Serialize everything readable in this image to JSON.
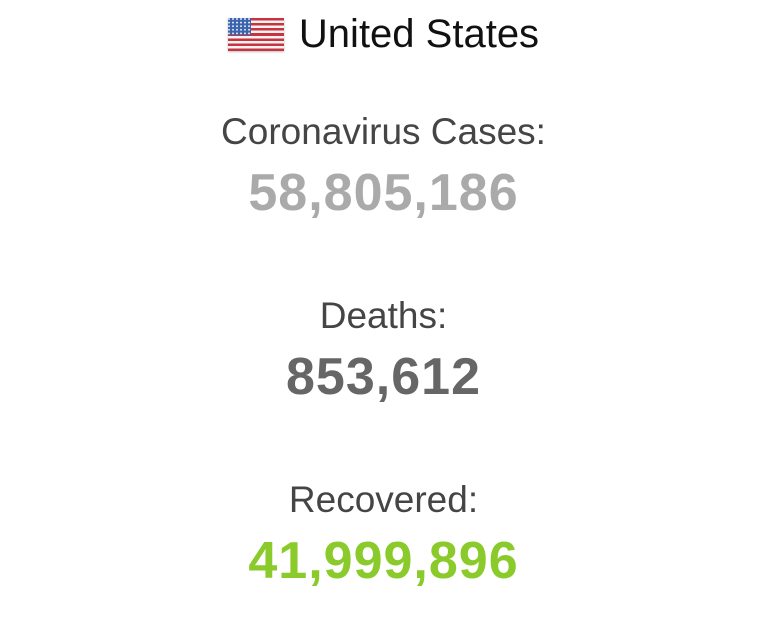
{
  "header": {
    "country": "United States",
    "flag_icon": "us-flag",
    "flag_colors": {
      "red": "#c7333e",
      "white": "#f3f3f3",
      "blue": "#3a64ad",
      "stars": "#ffffff"
    },
    "title_color": "#111111"
  },
  "label_color": "#454545",
  "counters": [
    {
      "id": "cases",
      "label": "Coronavirus Cases:",
      "value": "58,805,186",
      "value_color": "#aaaaaa"
    },
    {
      "id": "deaths",
      "label": "Deaths:",
      "value": "853,612",
      "value_color": "#666666"
    },
    {
      "id": "recovered",
      "label": "Recovered:",
      "value": "41,999,896",
      "value_color": "#8aca2b"
    }
  ]
}
